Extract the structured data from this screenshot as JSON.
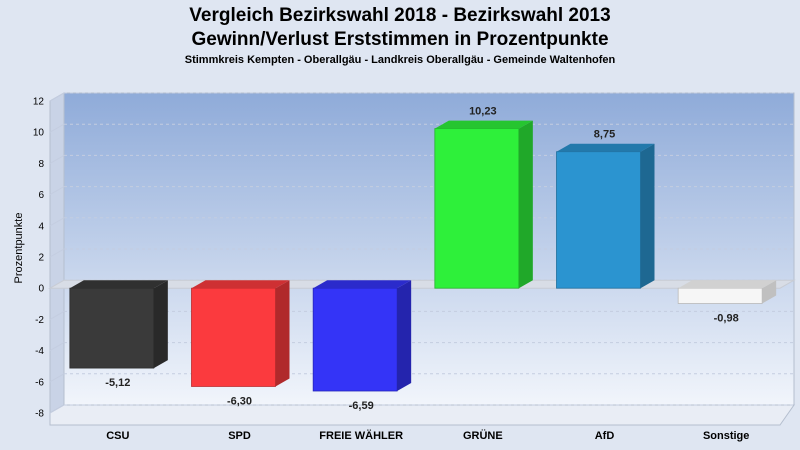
{
  "chart_data": {
    "type": "bar",
    "title_line1": "Vergleich Bezirkswahl 2018 - Bezirkswahl 2013",
    "title_line2": "Gewinn/Verlust Erststimmen in Prozentpunkte",
    "subtitle": "Stimmkreis Kempten - Oberallgäu - Landkreis Oberallgäu - Gemeinde Waltenhofen",
    "ylabel": "Prozentpunkte",
    "ylim": [
      -8,
      12
    ],
    "yticks": [
      -8,
      -6,
      -4,
      -2,
      0,
      2,
      4,
      6,
      8,
      10,
      12
    ],
    "categories": [
      "CSU",
      "SPD",
      "FREIE WÄHLER",
      "GRÜNE",
      "AfD",
      "Sonstige"
    ],
    "values": [
      -5.12,
      -6.3,
      -6.59,
      10.23,
      8.75,
      -0.98
    ],
    "value_labels": [
      "-5,12",
      "-6,30",
      "-6,59",
      "10,23",
      "8,75",
      "-0,98"
    ],
    "colors": [
      "#3a3a3a",
      "#fb3a3e",
      "#3434f7",
      "#2ef03a",
      "#2b94d0",
      "#f6f6f6"
    ],
    "grid": true
  }
}
